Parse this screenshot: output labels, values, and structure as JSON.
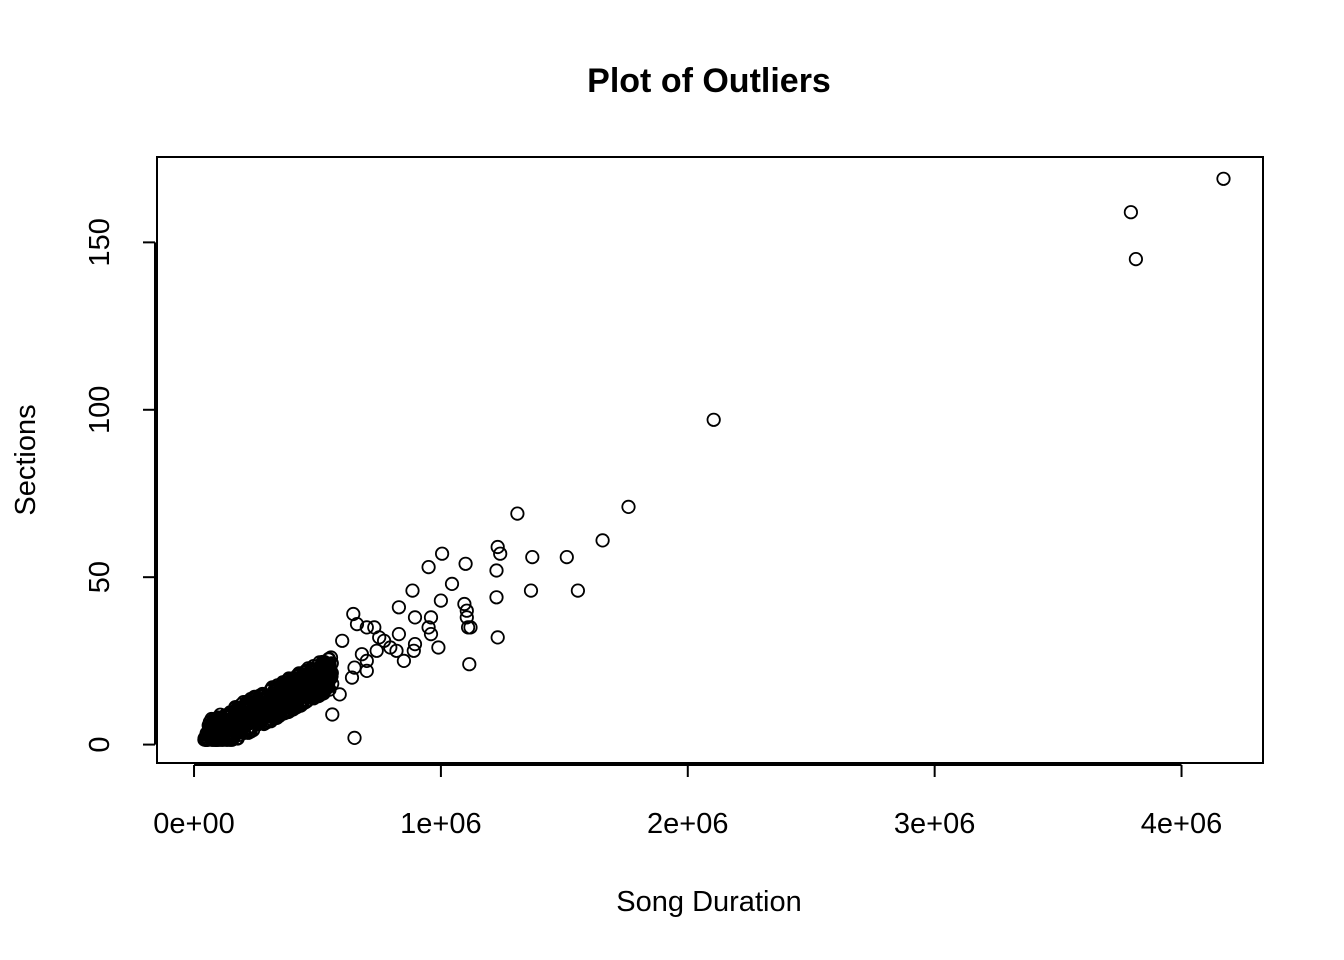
{
  "chart_data": {
    "type": "scatter",
    "title": "Plot of Outliers",
    "xlabel": "Song Duration",
    "ylabel": "Sections",
    "xlim": [
      -150000,
      4330000
    ],
    "ylim": [
      -5.5,
      175.5
    ],
    "x_ticks": [
      0,
      1000000,
      2000000,
      3000000,
      4000000
    ],
    "x_tick_labels": [
      "0e+00",
      "1e+06",
      "2e+06",
      "3e+06",
      "4e+06"
    ],
    "y_ticks": [
      0,
      50,
      100,
      150
    ],
    "y_tick_labels": [
      "0",
      "50",
      "100",
      "150"
    ],
    "marker": "open-circle",
    "grid": false,
    "legend": "none",
    "points": [
      [
        4170000,
        169
      ],
      [
        3795000,
        159
      ],
      [
        3815000,
        145
      ],
      [
        2105000,
        97
      ],
      [
        1760000,
        71
      ],
      [
        1310000,
        69
      ],
      [
        1655000,
        61
      ],
      [
        1230000,
        59
      ],
      [
        1240000,
        57
      ],
      [
        1005000,
        57
      ],
      [
        1370000,
        56
      ],
      [
        1510000,
        56
      ],
      [
        1100000,
        54
      ],
      [
        950000,
        53
      ],
      [
        1225000,
        52
      ],
      [
        1045000,
        48
      ],
      [
        1365000,
        46
      ],
      [
        1555000,
        46
      ],
      [
        885000,
        46
      ],
      [
        1225000,
        44
      ],
      [
        1000000,
        43
      ],
      [
        1095000,
        42
      ],
      [
        830000,
        41
      ],
      [
        1105000,
        40
      ],
      [
        645000,
        39
      ],
      [
        1105000,
        38
      ],
      [
        895000,
        38
      ],
      [
        960000,
        38
      ],
      [
        660000,
        36
      ],
      [
        1110000,
        35
      ],
      [
        950000,
        35
      ],
      [
        1120000,
        35
      ],
      [
        700000,
        35
      ],
      [
        730000,
        35
      ],
      [
        960000,
        33
      ],
      [
        1230000,
        32
      ],
      [
        750000,
        32
      ],
      [
        830000,
        33
      ],
      [
        770000,
        31
      ],
      [
        895000,
        30
      ],
      [
        795000,
        29
      ],
      [
        990000,
        29
      ],
      [
        890000,
        28
      ],
      [
        820000,
        28
      ],
      [
        850000,
        25
      ],
      [
        1115000,
        24
      ],
      [
        650000,
        23
      ],
      [
        700000,
        22
      ],
      [
        640000,
        20
      ],
      [
        590000,
        15
      ],
      [
        560000,
        9
      ],
      [
        650000,
        2
      ],
      [
        700000,
        25
      ],
      [
        680000,
        27
      ],
      [
        740000,
        28
      ],
      [
        600000,
        31
      ]
    ]
  }
}
